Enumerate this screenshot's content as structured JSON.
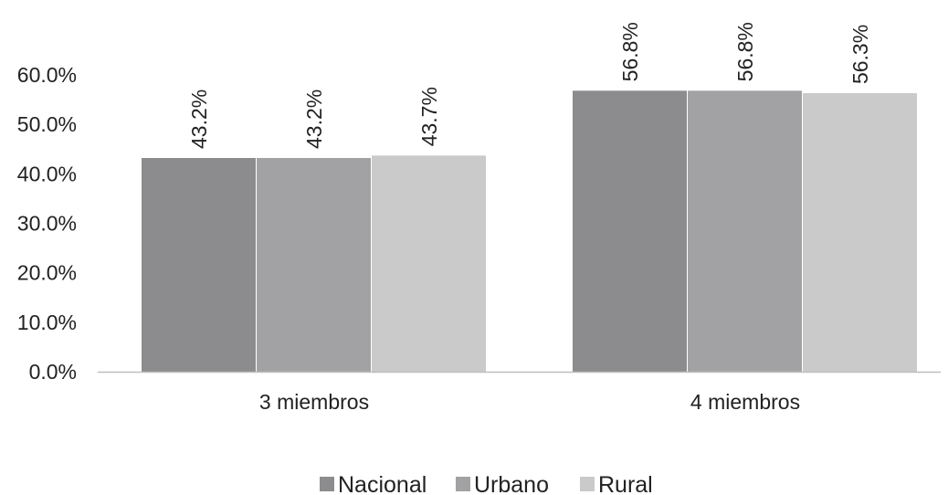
{
  "chart_data": {
    "type": "bar",
    "categories": [
      "3 miembros",
      "4 miembros"
    ],
    "series": [
      {
        "name": "Nacional",
        "values": [
          43.2,
          56.8
        ],
        "labels": [
          "43.2%",
          "56.8%"
        ],
        "color": "#8c8c8e"
      },
      {
        "name": "Urbano",
        "values": [
          43.2,
          56.8
        ],
        "labels": [
          "43.2%",
          "56.8%"
        ],
        "color": "#a2a2a4"
      },
      {
        "name": "Rural",
        "values": [
          43.7,
          56.3
        ],
        "labels": [
          "43.7%",
          "56.3%"
        ],
        "color": "#cacacb"
      }
    ],
    "ylim": [
      0,
      60
    ],
    "yticks": [
      0,
      10,
      20,
      30,
      40,
      50,
      60
    ],
    "ytick_labels": [
      "0.0%",
      "10.0%",
      "20.0%",
      "30.0%",
      "40.0%",
      "50.0%",
      "60.0%"
    ],
    "title": "",
    "xlabel": "",
    "ylabel": "",
    "grid": false,
    "legend_position": "bottom",
    "data_label_orientation": "vertical"
  }
}
